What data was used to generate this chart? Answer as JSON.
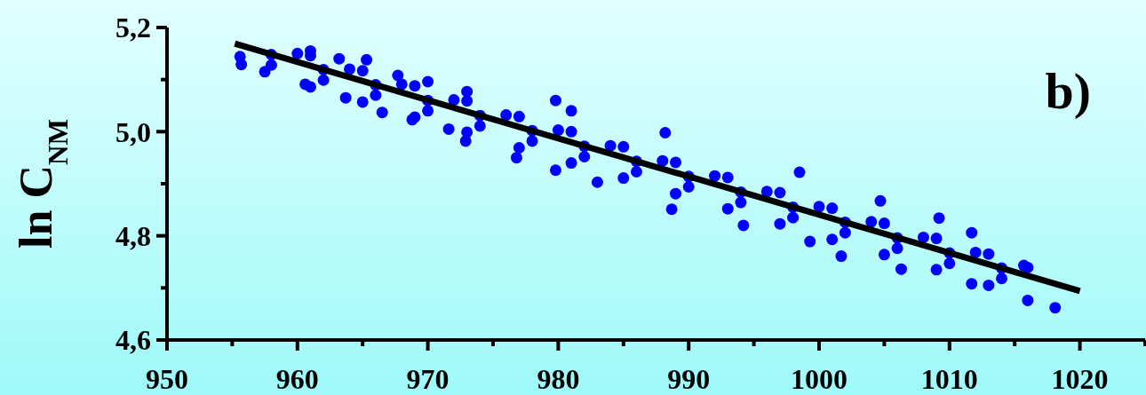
{
  "chart_data": {
    "type": "scatter",
    "ylabel": "ln C$_{NM}$",
    "annotations": [
      "b)"
    ],
    "xlim": [
      950,
      1025
    ],
    "ylim": [
      4.6,
      5.2
    ],
    "xticks": [
      950,
      {
        "value": 955,
        "label": null
      },
      960,
      {
        "value": 965,
        "label": null
      },
      970,
      {
        "value": 975,
        "label": null
      },
      980,
      {
        "value": 985,
        "label": null
      },
      990,
      {
        "value": 995,
        "label": null
      },
      1000,
      {
        "value": 1005,
        "label": null
      },
      1010,
      {
        "value": 1015,
        "label": null
      },
      1020,
      {
        "value": 1025,
        "label": null
      }
    ],
    "yticks": [
      {
        "value": 4.6,
        "label": "4,6"
      },
      {
        "value": 4.7,
        "label": null
      },
      {
        "value": 4.8,
        "label": "4,8"
      },
      {
        "value": 4.9,
        "label": null
      },
      {
        "value": 5.0,
        "label": "5,0"
      },
      {
        "value": 5.1,
        "label": null
      },
      {
        "value": 5.2,
        "label": "5,2"
      }
    ],
    "grid": false,
    "series": [
      {
        "marker": "circle",
        "color": "#0000ff",
        "x": [
          961,
          965,
          969,
          973,
          977,
          981,
          985,
          989,
          993,
          997,
          1001,
          1005,
          1009,
          1013,
          961,
          965,
          969,
          973,
          977,
          981,
          985,
          989,
          993,
          997,
          1001,
          1005,
          1009,
          1013,
          955.6,
          955.7,
          961.0,
          963.2,
          965.3,
          967.7,
          970.0,
          973.0,
          979.8,
          957.5,
          960.6,
          963.7,
          966.5,
          968.8,
          971.6,
          972.9,
          976.8,
          979.8,
          981.0,
          988.2,
          998.5,
          1004.7,
          1009.2,
          1011.7,
          1015.7,
          983.0,
          988.7,
          994.2,
          999.3,
          1001.7,
          1006.3,
          1011.7,
          1016.0,
          1018.1,
          958,
          962,
          966,
          970,
          974,
          978,
          982,
          986,
          990,
          994,
          998,
          1002,
          1006,
          1010,
          1014,
          958,
          962,
          966,
          970,
          974,
          978,
          982,
          986,
          990,
          994,
          998,
          1002,
          1006,
          1010,
          1014,
          960,
          964,
          968,
          972,
          976,
          980,
          984,
          988,
          992,
          996,
          1000,
          1004,
          1008,
          1012,
          1016
        ],
        "values": [
          5.146,
          5.117,
          5.088,
          5.059,
          5.029,
          5.0,
          4.971,
          4.941,
          4.912,
          4.883,
          4.853,
          4.824,
          4.795,
          4.765,
          5.086,
          5.057,
          5.028,
          4.999,
          4.969,
          4.94,
          4.911,
          4.881,
          4.852,
          4.823,
          4.793,
          4.764,
          4.735,
          4.705,
          5.144,
          5.129,
          5.155,
          5.14,
          5.138,
          5.108,
          5.096,
          5.077,
          5.06,
          5.115,
          5.091,
          5.065,
          5.037,
          5.023,
          5.005,
          4.982,
          4.95,
          4.926,
          5.04,
          4.998,
          4.922,
          4.867,
          4.834,
          4.806,
          4.743,
          4.903,
          4.851,
          4.82,
          4.789,
          4.761,
          4.736,
          4.708,
          4.676,
          4.662,
          5.148,
          5.119,
          5.09,
          5.06,
          5.031,
          5.002,
          4.972,
          4.943,
          4.914,
          4.884,
          4.855,
          4.826,
          4.796,
          4.767,
          4.738,
          5.128,
          5.099,
          5.07,
          5.04,
          5.011,
          4.982,
          4.952,
          4.923,
          4.894,
          4.864,
          4.835,
          4.806,
          4.776,
          4.747,
          4.718,
          5.15,
          5.12,
          5.091,
          5.061,
          5.032,
          5.003,
          4.973,
          4.944,
          4.915,
          4.885,
          4.856,
          4.827,
          4.797,
          4.768,
          4.739
        ]
      },
      {
        "type": "line",
        "color": "#000000",
        "x": [
          955.2,
          1020
        ],
        "values": [
          5.169,
          4.694
        ]
      }
    ]
  }
}
